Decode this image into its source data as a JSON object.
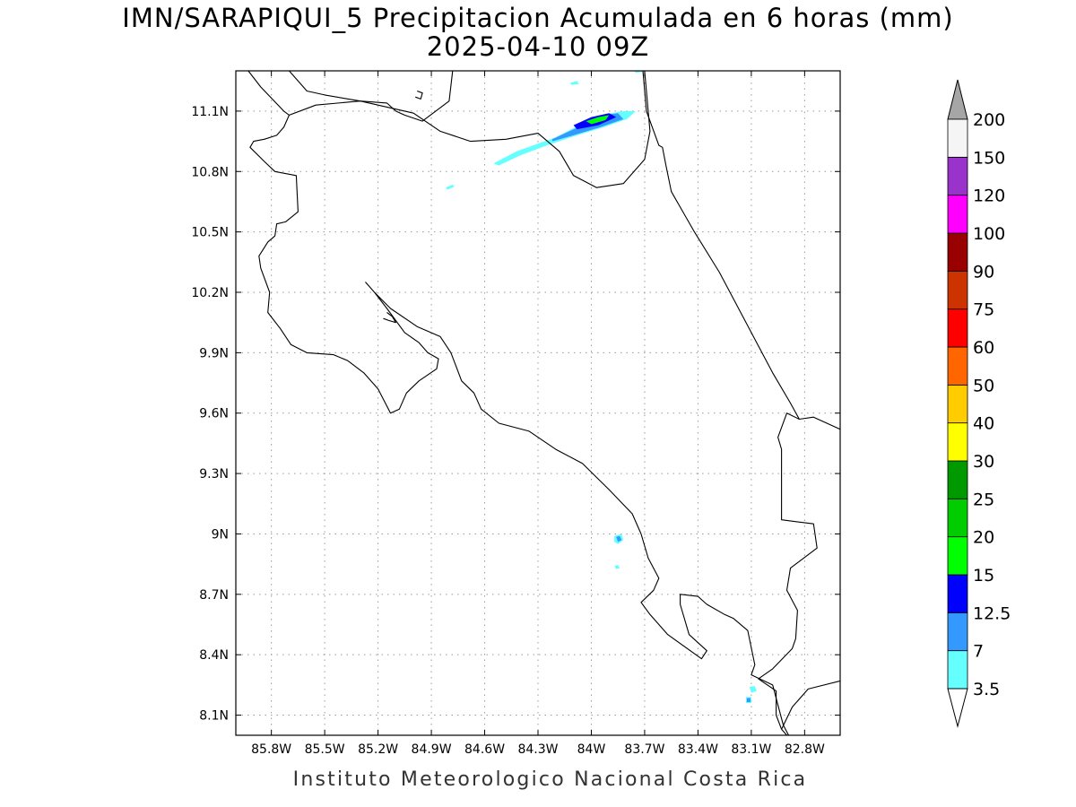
{
  "title": {
    "line1": "IMN/SARAPIQUI_5 Precipitacion Acumulada en 6 horas (mm)",
    "line2": "2025-04-10 09Z"
  },
  "footer": "Instituto Meteorologico Nacional Costa Rica",
  "map": {
    "lon_range": [
      -86.0,
      -82.6
    ],
    "lat_range": [
      8.0,
      11.3
    ],
    "lon_ticks": [
      {
        "value": -85.8,
        "label": "85.8W"
      },
      {
        "value": -85.5,
        "label": "85.5W"
      },
      {
        "value": -85.2,
        "label": "85.2W"
      },
      {
        "value": -84.9,
        "label": "84.9W"
      },
      {
        "value": -84.6,
        "label": "84.6W"
      },
      {
        "value": -84.3,
        "label": "84.3W"
      },
      {
        "value": -84.0,
        "label": "84W"
      },
      {
        "value": -83.7,
        "label": "83.7W"
      },
      {
        "value": -83.4,
        "label": "83.4W"
      },
      {
        "value": -83.1,
        "label": "83.1W"
      },
      {
        "value": -82.8,
        "label": "82.8W"
      }
    ],
    "lat_ticks": [
      {
        "value": 11.1,
        "label": "11.1N"
      },
      {
        "value": 10.8,
        "label": "10.8N"
      },
      {
        "value": 10.5,
        "label": "10.5N"
      },
      {
        "value": 10.2,
        "label": "10.2N"
      },
      {
        "value": 9.9,
        "label": "9.9N"
      },
      {
        "value": 9.6,
        "label": "9.6N"
      },
      {
        "value": 9.3,
        "label": "9.3N"
      },
      {
        "value": 9.0,
        "label": "9N"
      },
      {
        "value": 8.7,
        "label": "8.7N"
      },
      {
        "value": 8.4,
        "label": "8.4N"
      },
      {
        "value": 8.1,
        "label": "8.1N"
      }
    ],
    "grid": true
  },
  "colorbar": {
    "levels": [
      "3.5",
      "7",
      "12.5",
      "15",
      "20",
      "25",
      "30",
      "40",
      "50",
      "60",
      "75",
      "90",
      "100",
      "120",
      "150",
      "200"
    ],
    "colors": [
      "#66ffff",
      "#3399ff",
      "#0000ff",
      "#00ff00",
      "#00cc00",
      "#009900",
      "#ffff00",
      "#ffcc00",
      "#ff6600",
      "#ff0000",
      "#cc3300",
      "#990000",
      "#ff00ff",
      "#9933cc",
      "#f5f5f5"
    ],
    "under_color": "#ffffff",
    "over_color": "#a6a6a6"
  },
  "precip_features": [
    {
      "name": "main-band-outer",
      "color": "#66ffff",
      "points": [
        [
          -84.55,
          10.84
        ],
        [
          -84.42,
          10.9
        ],
        [
          -84.2,
          10.97
        ],
        [
          -84.05,
          11.04
        ],
        [
          -83.95,
          11.08
        ],
        [
          -83.82,
          11.1
        ],
        [
          -83.75,
          11.1
        ],
        [
          -83.8,
          11.06
        ],
        [
          -83.93,
          11.02
        ],
        [
          -84.08,
          10.98
        ],
        [
          -84.25,
          10.93
        ],
        [
          -84.4,
          10.88
        ],
        [
          -84.52,
          10.83
        ]
      ]
    },
    {
      "name": "main-band-mid",
      "color": "#3399ff",
      "points": [
        [
          -84.22,
          10.96
        ],
        [
          -84.05,
          11.03
        ],
        [
          -83.93,
          11.08
        ],
        [
          -83.85,
          11.09
        ],
        [
          -83.82,
          11.06
        ],
        [
          -83.95,
          11.02
        ],
        [
          -84.1,
          10.98
        ],
        [
          -84.22,
          10.95
        ]
      ]
    },
    {
      "name": "main-band-core-blue",
      "color": "#0000ff",
      "points": [
        [
          -84.1,
          11.03
        ],
        [
          -84.0,
          11.07
        ],
        [
          -83.9,
          11.09
        ],
        [
          -83.86,
          11.07
        ],
        [
          -83.96,
          11.03
        ],
        [
          -84.08,
          11.01
        ]
      ]
    },
    {
      "name": "main-band-core-green",
      "color": "#00ff00",
      "points": [
        [
          -84.03,
          11.05
        ],
        [
          -83.96,
          11.07
        ],
        [
          -83.9,
          11.08
        ],
        [
          -83.92,
          11.055
        ],
        [
          -84.0,
          11.035
        ]
      ]
    },
    {
      "name": "spot-north-1",
      "color": "#66ffff",
      "points": [
        [
          -84.12,
          11.24
        ],
        [
          -84.08,
          11.25
        ],
        [
          -84.07,
          11.235
        ],
        [
          -84.11,
          11.23
        ]
      ]
    },
    {
      "name": "spot-north-2",
      "color": "#66ffff",
      "points": [
        [
          -83.76,
          11.3
        ],
        [
          -83.72,
          11.31
        ],
        [
          -83.71,
          11.295
        ],
        [
          -83.75,
          11.29
        ]
      ]
    },
    {
      "name": "spot-west",
      "color": "#66ffff",
      "points": [
        [
          -84.82,
          10.72
        ],
        [
          -84.78,
          10.735
        ],
        [
          -84.77,
          10.725
        ],
        [
          -84.81,
          10.71
        ]
      ]
    },
    {
      "name": "spot-south-1",
      "color": "#66ffff",
      "points": [
        [
          -83.87,
          8.99
        ],
        [
          -83.83,
          9.0
        ],
        [
          -83.82,
          8.97
        ],
        [
          -83.85,
          8.95
        ],
        [
          -83.87,
          8.96
        ]
      ]
    },
    {
      "name": "spot-south-1-core",
      "color": "#3399ff",
      "points": [
        [
          -83.86,
          8.985
        ],
        [
          -83.84,
          8.99
        ],
        [
          -83.83,
          8.97
        ],
        [
          -83.85,
          8.96
        ]
      ]
    },
    {
      "name": "spot-south-2",
      "color": "#66ffff",
      "points": [
        [
          -83.87,
          8.84
        ],
        [
          -83.85,
          8.845
        ],
        [
          -83.84,
          8.83
        ],
        [
          -83.86,
          8.825
        ]
      ]
    },
    {
      "name": "spot-southeast-1",
      "color": "#66ffff",
      "points": [
        [
          -83.11,
          8.24
        ],
        [
          -83.08,
          8.245
        ],
        [
          -83.07,
          8.22
        ],
        [
          -83.1,
          8.21
        ]
      ]
    },
    {
      "name": "spot-southeast-2",
      "color": "#66ffff",
      "points": [
        [
          -83.13,
          8.19
        ],
        [
          -83.1,
          8.19
        ],
        [
          -83.1,
          8.16
        ],
        [
          -83.13,
          8.16
        ]
      ]
    },
    {
      "name": "spot-southeast-2-core",
      "color": "#3399ff",
      "points": [
        [
          -83.125,
          8.185
        ],
        [
          -83.105,
          8.185
        ],
        [
          -83.105,
          8.165
        ],
        [
          -83.125,
          8.165
        ]
      ]
    }
  ],
  "boundaries": [
    {
      "name": "costa-rica-outline",
      "points": [
        [
          -85.93,
          11.3
        ],
        [
          -85.86,
          11.22
        ],
        [
          -85.73,
          11.1
        ],
        [
          -85.7,
          11.08
        ],
        [
          -85.73,
          11.02
        ],
        [
          -85.77,
          10.98
        ],
        [
          -85.84,
          10.96
        ],
        [
          -85.9,
          10.95
        ],
        [
          -85.92,
          10.92
        ],
        [
          -85.84,
          10.85
        ],
        [
          -85.78,
          10.8
        ],
        [
          -85.66,
          10.78
        ],
        [
          -85.65,
          10.6
        ],
        [
          -85.72,
          10.55
        ],
        [
          -85.77,
          10.54
        ],
        [
          -85.78,
          10.48
        ],
        [
          -85.82,
          10.45
        ],
        [
          -85.87,
          10.38
        ],
        [
          -85.86,
          10.32
        ],
        [
          -85.81,
          10.2
        ],
        [
          -85.82,
          10.1
        ],
        [
          -85.75,
          10.02
        ],
        [
          -85.69,
          9.94
        ],
        [
          -85.6,
          9.9
        ],
        [
          -85.45,
          9.89
        ],
        [
          -85.37,
          9.86
        ],
        [
          -85.28,
          9.8
        ],
        [
          -85.2,
          9.72
        ],
        [
          -85.13,
          9.6
        ],
        [
          -85.08,
          9.62
        ],
        [
          -85.04,
          9.7
        ],
        [
          -84.97,
          9.76
        ],
        [
          -84.87,
          9.82
        ],
        [
          -84.86,
          9.87
        ],
        [
          -84.92,
          9.9
        ],
        [
          -84.97,
          9.95
        ],
        [
          -85.05,
          10.0
        ],
        [
          -85.15,
          10.12
        ],
        [
          -85.22,
          10.2
        ],
        [
          -85.27,
          10.25
        ],
        [
          -85.22,
          10.2
        ],
        [
          -85.13,
          10.12
        ],
        [
          -84.98,
          10.03
        ],
        [
          -84.85,
          9.98
        ],
        [
          -84.79,
          9.9
        ],
        [
          -84.73,
          9.76
        ],
        [
          -84.66,
          9.7
        ],
        [
          -84.62,
          9.62
        ],
        [
          -84.52,
          9.55
        ],
        [
          -84.35,
          9.51
        ],
        [
          -84.2,
          9.42
        ],
        [
          -84.05,
          9.35
        ],
        [
          -83.9,
          9.22
        ],
        [
          -83.77,
          9.1
        ],
        [
          -83.72,
          9.0
        ],
        [
          -83.68,
          8.88
        ],
        [
          -83.62,
          8.78
        ],
        [
          -83.65,
          8.72
        ],
        [
          -83.72,
          8.66
        ],
        [
          -83.67,
          8.6
        ],
        [
          -83.57,
          8.5
        ],
        [
          -83.38,
          8.38
        ],
        [
          -83.35,
          8.42
        ],
        [
          -83.45,
          8.5
        ],
        [
          -83.5,
          8.65
        ],
        [
          -83.5,
          8.7
        ],
        [
          -83.4,
          8.69
        ],
        [
          -83.35,
          8.65
        ],
        [
          -83.25,
          8.6
        ],
        [
          -83.2,
          8.58
        ],
        [
          -83.12,
          8.52
        ],
        [
          -83.08,
          8.35
        ],
        [
          -83.1,
          8.3
        ],
        [
          -82.98,
          8.25
        ],
        [
          -82.95,
          8.15
        ],
        [
          -82.92,
          8.05
        ],
        [
          -82.89,
          8.0
        ]
      ]
    },
    {
      "name": "costa-rica-north-border",
      "points": [
        [
          -85.7,
          11.08
        ],
        [
          -85.55,
          11.13
        ],
        [
          -85.3,
          11.15
        ],
        [
          -85.0,
          11.09
        ],
        [
          -84.85,
          11.0
        ],
        [
          -84.68,
          10.95
        ],
        [
          -84.48,
          10.96
        ],
        [
          -84.3,
          10.99
        ],
        [
          -84.18,
          10.9
        ],
        [
          -84.1,
          10.78
        ],
        [
          -83.97,
          10.72
        ],
        [
          -83.82,
          10.74
        ],
        [
          -83.7,
          10.86
        ],
        [
          -83.67,
          11.0
        ],
        [
          -83.7,
          11.3
        ]
      ]
    },
    {
      "name": "san-juan-channel",
      "points": [
        [
          -83.71,
          11.3
        ],
        [
          -83.69,
          11.1
        ],
        [
          -83.62,
          10.93
        ],
        [
          -83.6,
          10.92
        ],
        [
          -83.58,
          10.83
        ]
      ]
    },
    {
      "name": "caribbean-coast",
      "points": [
        [
          -83.58,
          10.83
        ],
        [
          -83.55,
          10.7
        ],
        [
          -83.42,
          10.5
        ],
        [
          -83.28,
          10.3
        ],
        [
          -83.1,
          10.0
        ],
        [
          -82.98,
          9.8
        ],
        [
          -82.88,
          9.65
        ],
        [
          -82.83,
          9.57
        ],
        [
          -82.75,
          9.58
        ],
        [
          -82.6,
          9.52
        ]
      ]
    },
    {
      "name": "panama-border",
      "points": [
        [
          -82.83,
          9.57
        ],
        [
          -82.9,
          9.6
        ],
        [
          -82.95,
          9.48
        ],
        [
          -82.93,
          9.42
        ],
        [
          -82.93,
          9.07
        ],
        [
          -82.75,
          9.05
        ],
        [
          -82.73,
          8.93
        ],
        [
          -82.88,
          8.83
        ],
        [
          -82.9,
          8.72
        ],
        [
          -82.84,
          8.62
        ],
        [
          -82.85,
          8.48
        ],
        [
          -82.87,
          8.43
        ],
        [
          -82.98,
          8.33
        ],
        [
          -83.06,
          8.28
        ],
        [
          -82.96,
          8.22
        ],
        [
          -82.96,
          8.1
        ],
        [
          -82.93,
          8.03
        ],
        [
          -82.9,
          8.0
        ]
      ]
    },
    {
      "name": "panama-pacific-coast",
      "points": [
        [
          -82.93,
          8.03
        ],
        [
          -82.87,
          8.14
        ],
        [
          -82.78,
          8.23
        ],
        [
          -82.6,
          8.27
        ]
      ]
    },
    {
      "name": "nicaragua-lake-shore",
      "points": [
        [
          -85.7,
          11.3
        ],
        [
          -85.6,
          11.2
        ],
        [
          -85.5,
          11.18
        ],
        [
          -85.3,
          11.15
        ],
        [
          -85.15,
          11.14
        ],
        [
          -85.1,
          11.1
        ],
        [
          -85.05,
          11.08
        ],
        [
          -84.95,
          11.05
        ],
        [
          -84.8,
          11.15
        ],
        [
          -84.78,
          11.3
        ]
      ]
    },
    {
      "name": "island-lake",
      "points": [
        [
          -84.98,
          11.2
        ],
        [
          -84.95,
          11.19
        ],
        [
          -84.96,
          11.16
        ],
        [
          -84.99,
          11.17
        ]
      ]
    },
    {
      "name": "island-nicoya",
      "points": [
        [
          -85.15,
          10.1
        ],
        [
          -85.12,
          10.08
        ],
        [
          -85.1,
          10.05
        ],
        [
          -85.14,
          10.06
        ],
        [
          -85.17,
          10.07
        ]
      ]
    }
  ]
}
